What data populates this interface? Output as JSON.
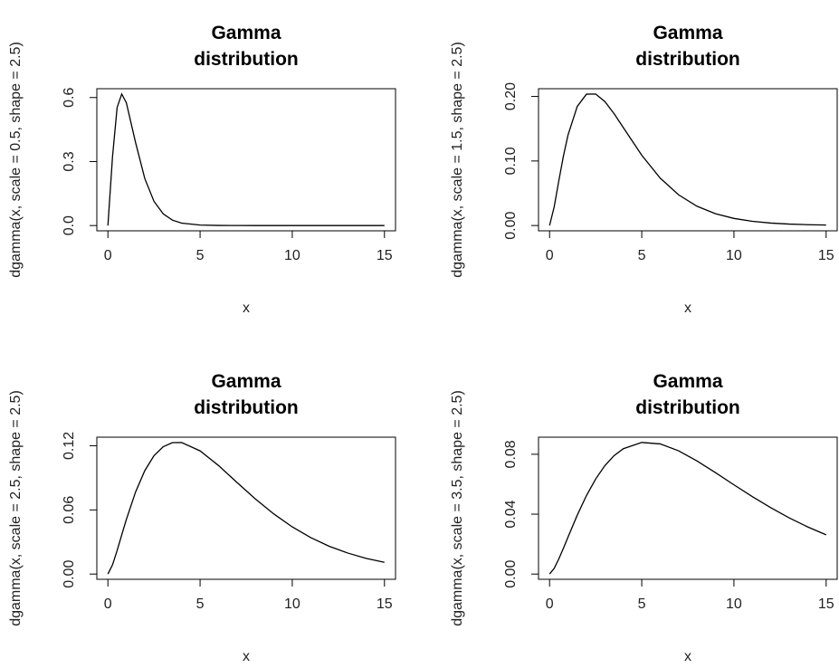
{
  "chart_data": [
    {
      "type": "line",
      "title": "Gamma\ndistribution",
      "xlabel": "x",
      "ylabel": "dgamma(x, scale = 0.5, shape = 2.5)",
      "color": "#000000",
      "x": [
        0,
        0.25,
        0.5,
        0.75,
        1,
        1.5,
        2,
        2.5,
        3,
        3.5,
        4,
        5,
        6,
        7,
        8,
        9,
        10,
        11,
        12,
        13,
        14,
        15
      ],
      "values": [
        0,
        0.3226,
        0.5535,
        0.6167,
        0.5759,
        0.3892,
        0.2205,
        0.1133,
        0.0548,
        0.0254,
        0.0114,
        0.0022,
        0.0004,
        0.0001,
        0,
        0,
        0,
        0,
        0,
        0,
        0,
        0
      ],
      "xlim": [
        -0.6,
        15.6
      ],
      "xticks": [
        0,
        5,
        10,
        15
      ],
      "ylim": [
        -0.0247,
        0.6414
      ],
      "yticks": [
        {
          "value": 0,
          "label": "0.0"
        },
        {
          "value": 0.3,
          "label": "0.3"
        },
        {
          "value": 0.6,
          "label": "0.6"
        }
      ]
    },
    {
      "type": "line",
      "title": "Gamma\ndistribution",
      "xlabel": "x",
      "ylabel": "dgamma(x, scale = 1.5, shape = 2.5)",
      "color": "#000000",
      "x": [
        0,
        0.25,
        0.5,
        0.75,
        1,
        1.5,
        2,
        2.5,
        3,
        3.5,
        4,
        5,
        6,
        7,
        8,
        9,
        10,
        11,
        12,
        13,
        14,
        15
      ],
      "values": [
        0,
        0.0289,
        0.0692,
        0.1075,
        0.1402,
        0.1845,
        0.2035,
        0.2038,
        0.192,
        0.1733,
        0.1517,
        0.1089,
        0.0735,
        0.0475,
        0.0298,
        0.0183,
        0.011,
        0.0065,
        0.0038,
        0.0022,
        0.0013,
        0.0007
      ],
      "xlim": [
        -0.6,
        15.6
      ],
      "xticks": [
        0,
        5,
        10,
        15
      ],
      "ylim": [
        -0.0082,
        0.212
      ],
      "yticks": [
        {
          "value": 0,
          "label": "0.00"
        },
        {
          "value": 0.1,
          "label": "0.10"
        },
        {
          "value": 0.2,
          "label": "0.20"
        }
      ]
    },
    {
      "type": "line",
      "title": "Gamma\ndistribution",
      "xlabel": "x",
      "ylabel": "dgamma(x, scale = 2.5, shape = 2.5)",
      "color": "#000000",
      "x": [
        0,
        0.25,
        0.5,
        0.75,
        1,
        1.5,
        2,
        2.5,
        3,
        3.5,
        4,
        5,
        6,
        7,
        8,
        9,
        10,
        11,
        12,
        13,
        14,
        15
      ],
      "values": [
        0,
        0.0086,
        0.022,
        0.0366,
        0.051,
        0.0767,
        0.0967,
        0.1107,
        0.1191,
        0.1229,
        0.123,
        0.1152,
        0.1015,
        0.0857,
        0.0702,
        0.0562,
        0.0441,
        0.0341,
        0.026,
        0.0197,
        0.0147,
        0.011
      ],
      "xlim": [
        -0.6,
        15.6
      ],
      "xticks": [
        0,
        5,
        10,
        15
      ],
      "ylim": [
        -0.0049,
        0.128
      ],
      "yticks": [
        {
          "value": 0,
          "label": "0.00"
        },
        {
          "value": 0.06,
          "label": "0.06"
        },
        {
          "value": 0.12,
          "label": "0.12"
        }
      ]
    },
    {
      "type": "line",
      "title": "Gamma\ndistribution",
      "xlabel": "x",
      "ylabel": "dgamma(x, scale = 3.5, shape = 2.5)",
      "color": "#000000",
      "x": [
        0,
        0.25,
        0.5,
        0.75,
        1,
        1.5,
        2,
        2.5,
        3,
        3.5,
        4,
        5,
        6,
        7,
        8,
        9,
        10,
        11,
        12,
        13,
        14,
        15
      ],
      "values": [
        0,
        0.0038,
        0.0101,
        0.0172,
        0.0247,
        0.0393,
        0.0524,
        0.0635,
        0.0724,
        0.0791,
        0.0837,
        0.0879,
        0.0869,
        0.0823,
        0.0755,
        0.0677,
        0.0596,
        0.0517,
        0.0443,
        0.0375,
        0.0315,
        0.0262
      ],
      "xlim": [
        -0.6,
        15.6
      ],
      "xticks": [
        0,
        5,
        10,
        15
      ],
      "ylim": [
        -0.0035,
        0.0914
      ],
      "yticks": [
        {
          "value": 0,
          "label": "0.00"
        },
        {
          "value": 0.04,
          "label": "0.04"
        },
        {
          "value": 0.08,
          "label": "0.08"
        }
      ]
    }
  ]
}
